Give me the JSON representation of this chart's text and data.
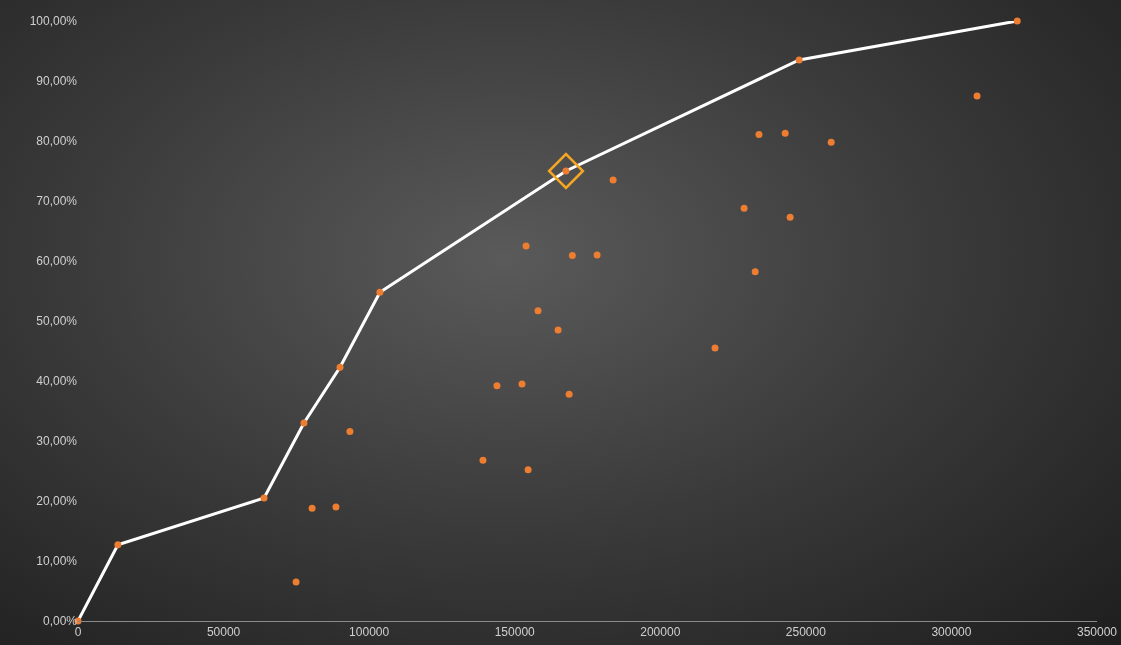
{
  "chart_data": {
    "type": "scatter",
    "xlim": [
      0,
      350000
    ],
    "ylim": [
      0,
      100
    ],
    "xticks": [
      0,
      50000,
      100000,
      150000,
      200000,
      250000,
      300000,
      350000
    ],
    "yticks": [
      {
        "value": 0,
        "label": "0,00%"
      },
      {
        "value": 10,
        "label": "10,00%"
      },
      {
        "value": 20,
        "label": "20,00%"
      },
      {
        "value": 30,
        "label": "30,00%"
      },
      {
        "value": 40,
        "label": "40,00%"
      },
      {
        "value": 50,
        "label": "50,00%"
      },
      {
        "value": 60,
        "label": "60,00%"
      },
      {
        "value": 70,
        "label": "70,00%"
      },
      {
        "value": 80,
        "label": "80,00%"
      },
      {
        "value": 90,
        "label": "90,00%"
      },
      {
        "value": 100,
        "label": "100,00%"
      }
    ],
    "grid": false,
    "legend": false,
    "series": [
      {
        "type": "line",
        "color": "#ffffff",
        "marker": "none",
        "x": [
          0,
          13700,
          63900,
          77600,
          90000,
          103700,
          167600,
          247700,
          322600
        ],
        "values": [
          0,
          12.7,
          20.5,
          33.0,
          42.3,
          54.8,
          75.0,
          93.5,
          100
        ]
      },
      {
        "color": "#ed7d31",
        "marker": "circle",
        "x": [
          0,
          13700,
          63900,
          77600,
          90000,
          103700,
          167600,
          247700,
          322600,
          74900,
          80400,
          88600,
          93400,
          139100,
          143900,
          152500,
          153900,
          154600,
          158000,
          164900,
          168700,
          169800,
          178300,
          183800,
          218800,
          228800,
          232600,
          233900,
          242900,
          244600,
          258700,
          308800
        ],
        "values": [
          0,
          12.7,
          20.5,
          33.0,
          42.3,
          54.8,
          75.0,
          93.5,
          100,
          6.5,
          18.8,
          19.0,
          31.6,
          26.8,
          39.2,
          39.5,
          62.5,
          25.2,
          51.7,
          48.5,
          37.8,
          60.9,
          61.0,
          73.5,
          45.5,
          68.8,
          58.2,
          81.1,
          81.3,
          67.3,
          79.8,
          87.5
        ]
      },
      {
        "color": "#f5a623",
        "marker": "diamond",
        "x": [
          167600
        ],
        "values": [
          75.0
        ]
      }
    ]
  }
}
